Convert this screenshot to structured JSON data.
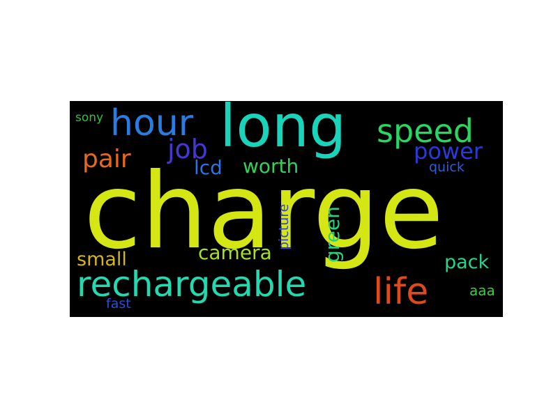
{
  "wordcloud": {
    "background": "#000000",
    "words": {
      "charge": {
        "text": "charge",
        "color": "#d4e614"
      },
      "long": {
        "text": "long",
        "color": "#19d4ba"
      },
      "hour": {
        "text": "hour",
        "color": "#2a7de0"
      },
      "speed": {
        "text": "speed",
        "color": "#29d661"
      },
      "rechargeable": {
        "text": "rechargeable",
        "color": "#22d9b0"
      },
      "life": {
        "text": "life",
        "color": "#e04a1a"
      },
      "pair": {
        "text": "pair",
        "color": "#e8691e"
      },
      "job": {
        "text": "job",
        "color": "#4636d2"
      },
      "power": {
        "text": "power",
        "color": "#2b3ad6"
      },
      "lcd": {
        "text": "lcd",
        "color": "#2a74e8"
      },
      "worth": {
        "text": "worth",
        "color": "#2fd25a"
      },
      "quick": {
        "text": "quick",
        "color": "#2c5ee0"
      },
      "sony": {
        "text": "sony",
        "color": "#2fc43a"
      },
      "small": {
        "text": "small",
        "color": "#d4b51a"
      },
      "camera": {
        "text": "camera",
        "color": "#a8e022"
      },
      "pack": {
        "text": "pack",
        "color": "#22d68c"
      },
      "aaa": {
        "text": "aaa",
        "color": "#39cf3c"
      },
      "fast": {
        "text": "fast",
        "color": "#2a4fd6"
      },
      "picture": {
        "text": "picture",
        "color": "#3b44d8"
      },
      "green": {
        "text": "green",
        "color": "#2bd07a"
      }
    }
  }
}
